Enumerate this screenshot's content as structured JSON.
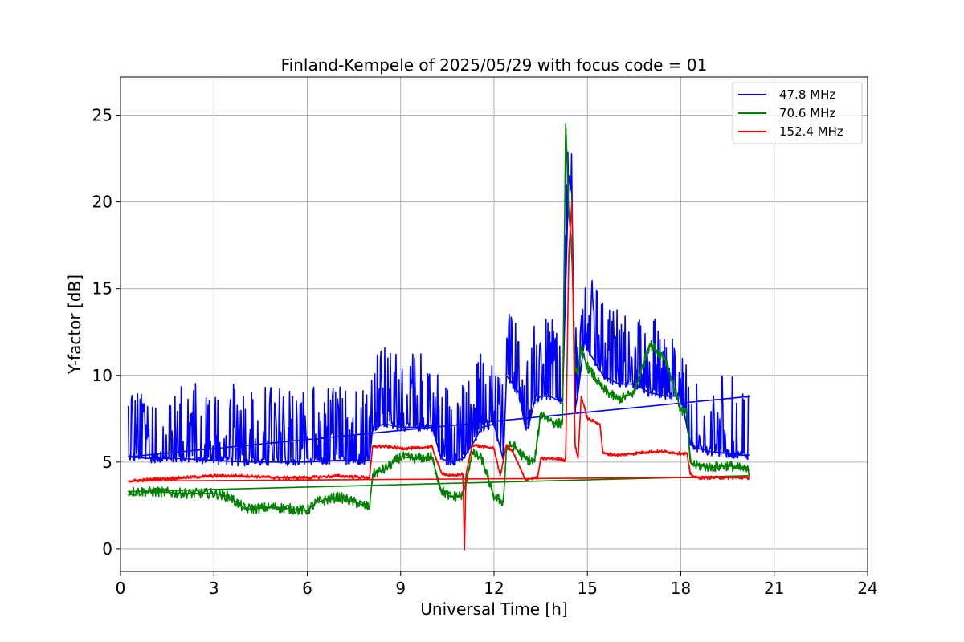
{
  "chart_data": {
    "type": "line",
    "title": "Finland-Kempele of 2025/05/29 with focus code = 01",
    "xlabel": "Universal Time [h]",
    "ylabel": "Y-factor [dB]",
    "xlim": [
      0,
      24
    ],
    "ylim": [
      -1.3,
      27.2
    ],
    "xticks": [
      0,
      3,
      6,
      9,
      12,
      15,
      18,
      21,
      24
    ],
    "yticks": [
      0,
      5,
      10,
      15,
      20,
      25
    ],
    "grid": true,
    "legend_position": "top-right",
    "series": [
      {
        "name": "  47.8 MHz",
        "color": "#0000ff",
        "noise": 3.2,
        "x": [
          0.25,
          1.0,
          2.0,
          3.0,
          4.0,
          5.0,
          6.0,
          7.0,
          8.0,
          8.1,
          8.5,
          9.0,
          9.5,
          10.0,
          10.3,
          10.6,
          11.0,
          11.3,
          11.6,
          12.0,
          12.3,
          12.4,
          12.6,
          12.8,
          13.0,
          13.1,
          13.3,
          13.5,
          13.8,
          14.0,
          14.2,
          14.3,
          14.4,
          14.5,
          14.6,
          14.7,
          14.8,
          14.9,
          15.0,
          15.5,
          16.0,
          16.5,
          17.0,
          17.5,
          18.0,
          18.2,
          18.3,
          18.5,
          19.0,
          19.5,
          20.0,
          20.2
        ],
        "y": [
          5.3,
          5.2,
          5.2,
          5.1,
          5.0,
          5.0,
          5.0,
          5.1,
          5.1,
          7.0,
          7.2,
          7.0,
          7.0,
          7.1,
          5.2,
          5.0,
          5.2,
          6.0,
          7.0,
          7.2,
          5.1,
          10.0,
          9.5,
          9.0,
          7.0,
          7.0,
          8.5,
          8.8,
          8.8,
          8.6,
          8.5,
          15.0,
          21.5,
          20.5,
          8.0,
          9.0,
          10.5,
          12.0,
          11.5,
          10.0,
          9.5,
          9.5,
          9.0,
          8.8,
          8.8,
          7.0,
          6.0,
          5.8,
          5.6,
          5.5,
          5.4,
          5.4
        ]
      },
      {
        "name": "  70.6 MHz",
        "color": "#008000",
        "noise": 0.6,
        "x": [
          0.25,
          1.0,
          2.0,
          3.0,
          3.5,
          4.0,
          5.0,
          6.0,
          6.3,
          7.0,
          8.0,
          8.1,
          8.5,
          9.0,
          9.5,
          10.0,
          10.3,
          10.6,
          11.0,
          11.3,
          11.6,
          12.0,
          12.3,
          12.4,
          12.6,
          13.0,
          13.3,
          13.5,
          14.0,
          14.2,
          14.3,
          14.4,
          14.5,
          14.6,
          14.7,
          14.8,
          15.0,
          15.5,
          16.0,
          16.5,
          17.0,
          17.5,
          18.0,
          18.2,
          18.3,
          18.5,
          19.0,
          19.5,
          20.0,
          20.2
        ],
        "y": [
          3.3,
          3.3,
          3.2,
          3.2,
          3.0,
          2.3,
          2.4,
          2.2,
          2.7,
          3.0,
          2.4,
          4.3,
          4.6,
          5.3,
          5.2,
          5.3,
          3.4,
          3.0,
          3.1,
          5.5,
          5.2,
          3.0,
          2.7,
          5.8,
          6.0,
          5.2,
          5.0,
          7.8,
          7.2,
          7.3,
          24.5,
          19.5,
          17.0,
          10.5,
          10.2,
          11.5,
          10.5,
          9.2,
          8.6,
          9.0,
          11.8,
          11.0,
          8.0,
          7.8,
          5.0,
          4.8,
          4.7,
          4.8,
          4.6,
          4.5
        ]
      },
      {
        "name": "152.4 MHz",
        "color": "#ff0000",
        "noise": 0.2,
        "x": [
          0.25,
          1.0,
          2.0,
          3.0,
          4.0,
          5.0,
          6.0,
          7.0,
          8.0,
          8.1,
          8.5,
          9.0,
          9.5,
          10.0,
          10.3,
          10.6,
          11.0,
          11.05,
          11.1,
          11.3,
          11.6,
          12.0,
          12.2,
          12.4,
          12.6,
          13.0,
          13.4,
          13.5,
          14.0,
          14.3,
          14.4,
          14.5,
          14.6,
          14.7,
          14.8,
          15.0,
          15.4,
          15.5,
          16.0,
          16.5,
          17.0,
          17.5,
          18.0,
          18.2,
          18.3,
          18.5,
          19.0,
          19.5,
          20.0,
          20.2
        ],
        "y": [
          3.9,
          4.0,
          4.1,
          4.2,
          4.2,
          4.1,
          4.1,
          4.2,
          4.1,
          5.9,
          5.9,
          5.8,
          5.8,
          5.9,
          4.4,
          4.2,
          4.3,
          0.0,
          4.3,
          6.0,
          5.9,
          5.8,
          4.2,
          6.0,
          5.6,
          4.0,
          4.1,
          5.2,
          5.2,
          5.1,
          17.0,
          20.0,
          6.0,
          5.2,
          8.8,
          7.5,
          7.2,
          5.5,
          5.4,
          5.5,
          5.6,
          5.6,
          5.5,
          5.5,
          4.3,
          4.1,
          4.1,
          4.1,
          4.1,
          4.1
        ]
      }
    ]
  }
}
